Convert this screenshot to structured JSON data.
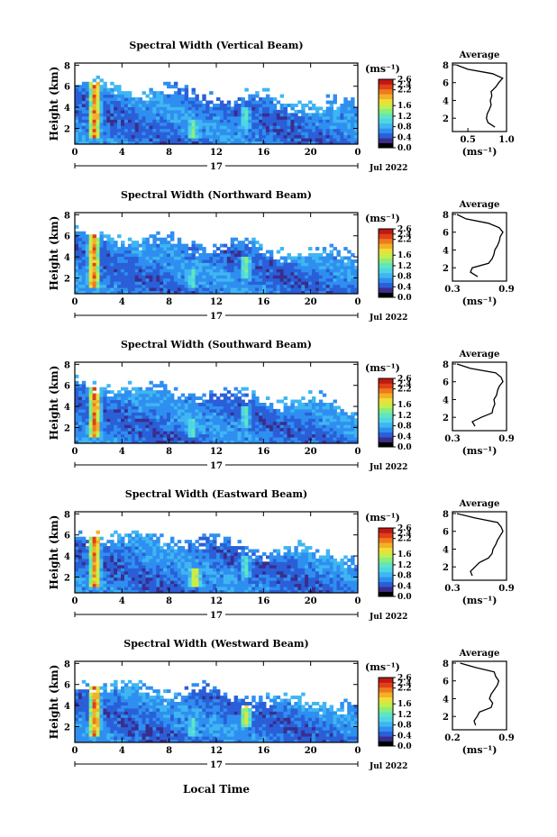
{
  "figure": {
    "xlabel": "Local Time",
    "date_label": "Jul 2022",
    "day_label": "17",
    "ylabel": "Height (km)",
    "unit_label": "(ms⁻¹)",
    "profile_title": "Average",
    "profile_xlabel": "(ms⁻¹)"
  },
  "colorbar": {
    "ticks": [
      "2.6",
      "2.4",
      "2.2",
      "2.0",
      "1.8",
      "1.6",
      "1.4",
      "1.2",
      "1.0",
      "0.8",
      "0.6",
      "0.4",
      "0.2",
      "0.0"
    ],
    "labeled_ticks": [
      "2.6",
      "2.4",
      "2.2",
      "1.6",
      "1.2",
      "0.8",
      "0.4",
      "0.0"
    ],
    "colors": [
      "#000000",
      "#3a2e8c",
      "#2a5fd8",
      "#2f8ff0",
      "#3fb6f2",
      "#4fd6e6",
      "#5fe6c0",
      "#8aee7e",
      "#c6ee4a",
      "#eede38",
      "#f4b026",
      "#ee7a1e",
      "#e0401a",
      "#c01812"
    ]
  },
  "chart_data": [
    {
      "type": "heatmap",
      "title": "Spectral Width (Vertical Beam)",
      "xlabel": "",
      "ylabel": "Height (km)",
      "x_ticks": [
        "0",
        "4",
        "8",
        "12",
        "16",
        "20",
        "0"
      ],
      "y_ticks": [
        "2",
        "4",
        "6",
        "8"
      ],
      "xlim": [
        0,
        24
      ],
      "ylim": [
        0.5,
        8.2
      ],
      "value_range": [
        0,
        2.6
      ],
      "features": [
        {
          "time": 1.7,
          "height_range": [
            1.0,
            6.5
          ],
          "peak": 2.6
        },
        {
          "time": 10.0,
          "height_range": [
            1.0,
            3.0
          ],
          "peak": 1.6
        },
        {
          "time": 14.5,
          "height_range": [
            2.0,
            4.0
          ],
          "peak": 1.4
        }
      ],
      "profile": {
        "title": "Average",
        "xlabel": "(ms⁻¹)",
        "x_ticks": [
          "0.5",
          "1.0"
        ],
        "xlim": [
          0.3,
          1.0
        ],
        "ylim": [
          0.5,
          8.2
        ],
        "height": [
          1.0,
          1.5,
          2.0,
          2.5,
          3.0,
          3.5,
          4.0,
          4.5,
          5.0,
          5.5,
          6.0,
          6.5,
          7.0,
          7.5,
          8.0
        ],
        "value": [
          0.85,
          0.76,
          0.74,
          0.75,
          0.78,
          0.8,
          0.79,
          0.81,
          0.8,
          0.86,
          0.9,
          0.95,
          0.82,
          0.5,
          0.35
        ]
      }
    },
    {
      "type": "heatmap",
      "title": "Spectral Width (Northward Beam)",
      "xlabel": "",
      "ylabel": "Height (km)",
      "x_ticks": [
        "0",
        "4",
        "8",
        "12",
        "16",
        "20",
        "0"
      ],
      "y_ticks": [
        "2",
        "4",
        "6",
        "8"
      ],
      "xlim": [
        0,
        24
      ],
      "ylim": [
        0.5,
        8.2
      ],
      "value_range": [
        0,
        2.6
      ],
      "features": [
        {
          "time": 1.6,
          "height_range": [
            1.0,
            6.0
          ],
          "peak": 2.6
        },
        {
          "time": 10.0,
          "height_range": [
            1.0,
            3.0
          ],
          "peak": 1.4
        },
        {
          "time": 14.5,
          "height_range": [
            2.0,
            4.0
          ],
          "peak": 1.6
        }
      ],
      "profile": {
        "title": "Average",
        "xlabel": "(ms⁻¹)",
        "x_ticks": [
          "0.3",
          "0.9"
        ],
        "xlim": [
          0.3,
          0.9
        ],
        "ylim": [
          0.5,
          8.2
        ],
        "height": [
          1.0,
          1.5,
          2.0,
          2.5,
          3.0,
          3.5,
          4.0,
          4.5,
          5.0,
          5.5,
          6.0,
          6.5,
          7.0,
          7.5,
          8.0
        ],
        "value": [
          0.58,
          0.5,
          0.52,
          0.7,
          0.74,
          0.76,
          0.77,
          0.8,
          0.82,
          0.83,
          0.86,
          0.82,
          0.7,
          0.45,
          0.35
        ]
      }
    },
    {
      "type": "heatmap",
      "title": "Spectral Width (Southward Beam)",
      "xlabel": "",
      "ylabel": "Height (km)",
      "x_ticks": [
        "0",
        "4",
        "8",
        "12",
        "16",
        "20",
        "0"
      ],
      "y_ticks": [
        "2",
        "4",
        "6",
        "8"
      ],
      "xlim": [
        0,
        24
      ],
      "ylim": [
        0.5,
        8.2
      ],
      "value_range": [
        0,
        2.6
      ],
      "features": [
        {
          "time": 1.7,
          "height_range": [
            1.0,
            6.0
          ],
          "peak": 2.6
        },
        {
          "time": 10.0,
          "height_range": [
            1.0,
            3.0
          ],
          "peak": 1.4
        },
        {
          "time": 14.5,
          "height_range": [
            2.0,
            4.0
          ],
          "peak": 1.4
        }
      ],
      "profile": {
        "title": "Average",
        "xlabel": "(ms⁻¹)",
        "x_ticks": [
          "0.3",
          "0.9"
        ],
        "xlim": [
          0.3,
          0.9
        ],
        "ylim": [
          0.5,
          8.2
        ],
        "height": [
          1.0,
          1.5,
          2.0,
          2.5,
          3.0,
          3.5,
          4.0,
          4.5,
          5.0,
          5.5,
          6.0,
          6.5,
          7.0,
          7.5,
          8.0
        ],
        "value": [
          0.55,
          0.52,
          0.62,
          0.74,
          0.75,
          0.77,
          0.76,
          0.79,
          0.8,
          0.82,
          0.86,
          0.84,
          0.78,
          0.5,
          0.35
        ]
      }
    },
    {
      "type": "heatmap",
      "title": "Spectral Width (Eastward Beam)",
      "xlabel": "",
      "ylabel": "Height (km)",
      "x_ticks": [
        "0",
        "4",
        "8",
        "12",
        "16",
        "20",
        "0"
      ],
      "y_ticks": [
        "2",
        "4",
        "6",
        "8"
      ],
      "xlim": [
        0,
        24
      ],
      "ylim": [
        0.5,
        8.2
      ],
      "value_range": [
        0,
        2.6
      ],
      "features": [
        {
          "time": 1.7,
          "height_range": [
            1.0,
            6.5
          ],
          "peak": 2.6
        },
        {
          "time": 10.2,
          "height_range": [
            1.0,
            3.0
          ],
          "peak": 2.2
        },
        {
          "time": 14.5,
          "height_range": [
            2.0,
            4.0
          ],
          "peak": 1.4
        }
      ],
      "profile": {
        "title": "Average",
        "xlabel": "(ms⁻¹)",
        "x_ticks": [
          "0.3",
          "0.9"
        ],
        "xlim": [
          0.3,
          0.9
        ],
        "ylim": [
          0.5,
          8.2
        ],
        "height": [
          1.0,
          1.5,
          2.0,
          2.5,
          3.0,
          3.5,
          4.0,
          4.5,
          5.0,
          5.5,
          6.0,
          6.5,
          7.0,
          7.5,
          8.0
        ],
        "value": [
          0.52,
          0.5,
          0.55,
          0.6,
          0.7,
          0.74,
          0.75,
          0.78,
          0.8,
          0.83,
          0.86,
          0.84,
          0.8,
          0.55,
          0.35
        ]
      }
    },
    {
      "type": "heatmap",
      "title": "Spectral Width (Westward Beam)",
      "xlabel": "Local Time",
      "ylabel": "Height (km)",
      "x_ticks": [
        "0",
        "4",
        "8",
        "12",
        "16",
        "20",
        "0"
      ],
      "y_ticks": [
        "2",
        "4",
        "6",
        "8"
      ],
      "xlim": [
        0,
        24
      ],
      "ylim": [
        0.5,
        8.2
      ],
      "value_range": [
        0,
        2.6
      ],
      "features": [
        {
          "time": 1.7,
          "height_range": [
            1.0,
            6.5
          ],
          "peak": 2.6
        },
        {
          "time": 10.0,
          "height_range": [
            1.0,
            3.0
          ],
          "peak": 1.4
        },
        {
          "time": 14.5,
          "height_range": [
            2.0,
            4.0
          ],
          "peak": 2.0
        }
      ],
      "profile": {
        "title": "Average",
        "xlabel": "(ms⁻¹)",
        "x_ticks": [
          "0.2",
          "0.9"
        ],
        "xlim": [
          0.2,
          0.9
        ],
        "ylim": [
          0.5,
          8.2
        ],
        "height": [
          1.0,
          1.5,
          2.0,
          2.5,
          3.0,
          3.5,
          4.0,
          4.5,
          5.0,
          5.5,
          6.0,
          6.5,
          7.0,
          7.5,
          8.0
        ],
        "value": [
          0.5,
          0.48,
          0.52,
          0.55,
          0.7,
          0.72,
          0.68,
          0.7,
          0.74,
          0.78,
          0.8,
          0.76,
          0.74,
          0.5,
          0.3
        ]
      }
    }
  ]
}
